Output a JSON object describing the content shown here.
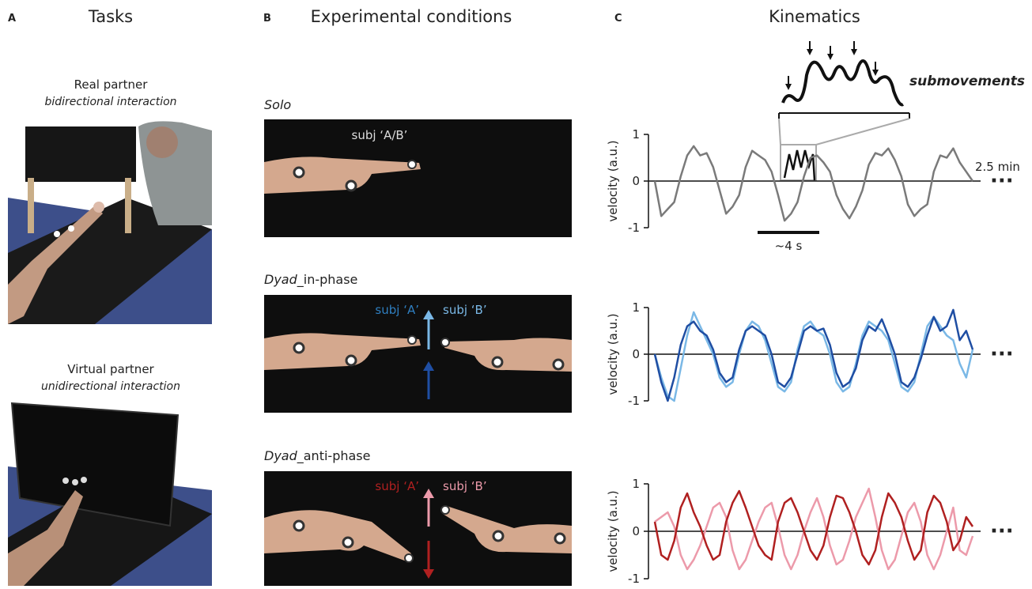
{
  "panel_a": {
    "letter": "A",
    "title": "Tasks",
    "items": [
      {
        "title": "Real partner",
        "subtitle": "bidirectional interaction"
      },
      {
        "title": "Virtual partner",
        "subtitle": "unidirectional interaction"
      }
    ]
  },
  "panel_b": {
    "letter": "B",
    "title": "Experimental conditions",
    "conditions": [
      {
        "italic": "Solo",
        "rest": "",
        "subjects": [
          "subj ‘A/B’"
        ]
      },
      {
        "italic": "Dyad",
        "rest": "_in-phase",
        "subjects": [
          "subj ‘A’",
          "subj ‘B’"
        ]
      },
      {
        "italic": "Dyad",
        "rest": "_anti-phase",
        "subjects": [
          "subj ‘A’",
          "subj ‘B’"
        ]
      }
    ]
  },
  "panel_c": {
    "letter": "C",
    "title": "Kinematics",
    "inset_label": "submovements",
    "duration": "2.5 min",
    "scale_bar": "~4 s"
  },
  "chart_data": [
    {
      "type": "line",
      "y_label": "velocity (a.u.)",
      "ylim": [
        -1,
        1
      ],
      "yticks": [
        -1,
        0,
        1
      ],
      "continuation": "···",
      "series": [
        {
          "color": "#7a7a7a",
          "values": [
            0,
            -0.75,
            -0.6,
            -0.45,
            0.1,
            0.55,
            0.75,
            0.55,
            0.6,
            0.3,
            -0.2,
            -0.7,
            -0.55,
            -0.3,
            0.3,
            0.65,
            0.55,
            0.45,
            0.2,
            -0.3,
            -0.85,
            -0.7,
            -0.45,
            0.1,
            0.5,
            0.55,
            0.4,
            0.2,
            -0.3,
            -0.6,
            -0.8,
            -0.55,
            -0.2,
            0.35,
            0.6,
            0.55,
            0.7,
            0.45,
            0.1,
            -0.5,
            -0.75,
            -0.6,
            -0.5,
            0.2,
            0.55,
            0.5,
            0.7,
            0.4,
            0.2,
            0
          ]
        }
      ]
    },
    {
      "type": "line",
      "y_label": "velocity (a.u.)",
      "ylim": [
        -1,
        1
      ],
      "yticks": [
        -1,
        0,
        1
      ],
      "continuation": "···",
      "series": [
        {
          "color": "#7ab8e6",
          "values": [
            0,
            -0.5,
            -0.9,
            -1,
            -0.3,
            0.4,
            0.9,
            0.6,
            0.3,
            0,
            -0.5,
            -0.7,
            -0.6,
            0,
            0.5,
            0.7,
            0.6,
            0.3,
            -0.2,
            -0.7,
            -0.8,
            -0.6,
            0.1,
            0.6,
            0.7,
            0.5,
            0.4,
            0,
            -0.6,
            -0.8,
            -0.7,
            -0.2,
            0.4,
            0.7,
            0.6,
            0.5,
            0.3,
            -0.2,
            -0.7,
            -0.8,
            -0.6,
            0,
            0.6,
            0.8,
            0.6,
            0.4,
            0.3,
            -0.2,
            -0.5,
            0.1
          ]
        },
        {
          "color": "#1f4ea3",
          "values": [
            0,
            -0.6,
            -1,
            -0.5,
            0.2,
            0.6,
            0.7,
            0.5,
            0.4,
            0.1,
            -0.4,
            -0.6,
            -0.5,
            0.1,
            0.5,
            0.6,
            0.5,
            0.4,
            0,
            -0.6,
            -0.7,
            -0.5,
            0,
            0.5,
            0.6,
            0.5,
            0.55,
            0.2,
            -0.4,
            -0.7,
            -0.6,
            -0.3,
            0.3,
            0.6,
            0.5,
            0.75,
            0.4,
            0,
            -0.6,
            -0.7,
            -0.5,
            -0.1,
            0.4,
            0.8,
            0.5,
            0.6,
            0.95,
            0.3,
            0.5,
            0.1
          ]
        }
      ]
    },
    {
      "type": "line",
      "y_label": "velocity (a.u.)",
      "ylim": [
        -1,
        1
      ],
      "yticks": [
        -1,
        0,
        1
      ],
      "continuation": "···",
      "series": [
        {
          "color": "#ec9aaa",
          "values": [
            0.2,
            0.3,
            0.4,
            0.1,
            -0.5,
            -0.8,
            -0.6,
            -0.3,
            0.1,
            0.5,
            0.6,
            0.3,
            -0.4,
            -0.8,
            -0.6,
            -0.2,
            0.2,
            0.5,
            0.6,
            0.1,
            -0.5,
            -0.8,
            -0.5,
            0,
            0.4,
            0.7,
            0.3,
            -0.3,
            -0.7,
            -0.6,
            -0.2,
            0.3,
            0.6,
            0.9,
            0.3,
            -0.4,
            -0.8,
            -0.6,
            -0.1,
            0.4,
            0.6,
            0.2,
            -0.5,
            -0.8,
            -0.5,
            0,
            0.5,
            -0.4,
            -0.5,
            -0.1
          ]
        },
        {
          "color": "#b02020",
          "values": [
            0.2,
            -0.5,
            -0.6,
            -0.2,
            0.5,
            0.8,
            0.4,
            0.1,
            -0.3,
            -0.6,
            -0.5,
            0.2,
            0.6,
            0.85,
            0.5,
            0.1,
            -0.3,
            -0.5,
            -0.6,
            0.2,
            0.6,
            0.7,
            0.4,
            0,
            -0.4,
            -0.6,
            -0.3,
            0.3,
            0.75,
            0.7,
            0.4,
            0,
            -0.5,
            -0.7,
            -0.4,
            0.3,
            0.8,
            0.6,
            0.3,
            -0.2,
            -0.6,
            -0.4,
            0.4,
            0.75,
            0.6,
            0.2,
            -0.4,
            -0.2,
            0.3,
            0.1
          ]
        }
      ]
    }
  ]
}
